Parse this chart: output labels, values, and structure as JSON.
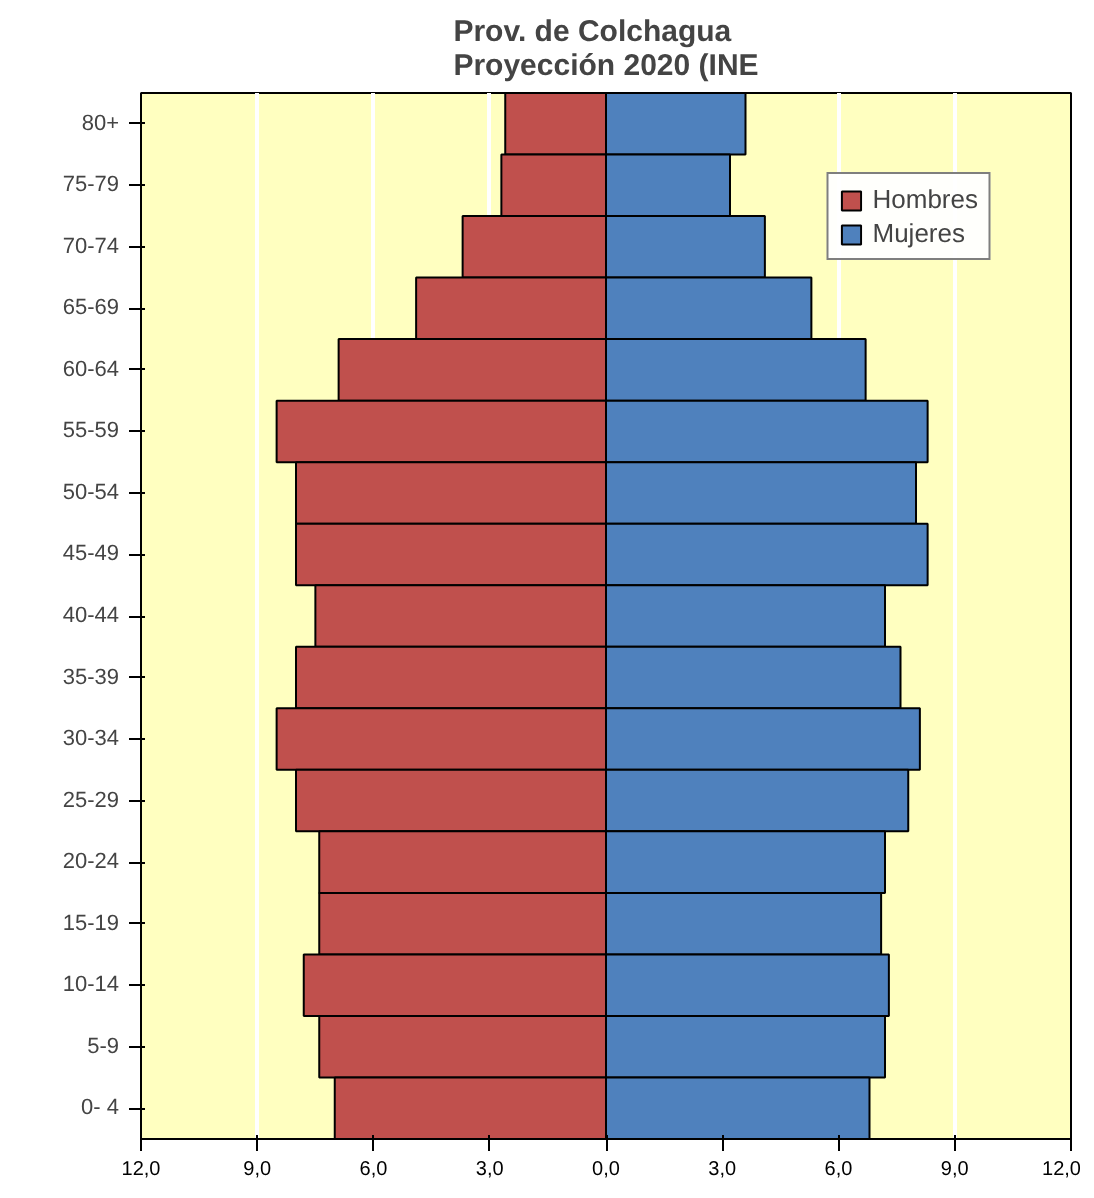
{
  "chart_data": {
    "type": "bar",
    "title": "Prov. de Colchagua\nProyección 2020 (INE",
    "orientation": "horizontal",
    "stacked": true,
    "categories": [
      "80+",
      "75-79",
      "70-74",
      "65-69",
      "60-64",
      "55-59",
      "50-54",
      "45-49",
      "40-44",
      "35-39",
      "30-34",
      "25-29",
      "20-24",
      "15-19",
      "10-14",
      "5-9",
      "0- 4"
    ],
    "series": [
      {
        "name": "Hombres",
        "color": "#c0504d",
        "values": [
          -2.6,
          -2.7,
          -3.7,
          -4.9,
          -6.9,
          -8.5,
          -8.0,
          -8.0,
          -7.5,
          -8.0,
          -8.5,
          -8.0,
          -7.4,
          -7.4,
          -7.8,
          -7.4,
          -7.0
        ]
      },
      {
        "name": "Mujeres",
        "color": "#4f81bd",
        "values": [
          3.6,
          3.2,
          4.1,
          5.3,
          6.7,
          8.3,
          8.0,
          8.3,
          7.2,
          7.6,
          8.1,
          7.8,
          7.2,
          7.1,
          7.3,
          7.2,
          6.8
        ]
      }
    ],
    "xlim": [
      -12,
      12
    ],
    "xticks": [
      {
        "value": -12,
        "label": "12,0"
      },
      {
        "value": -9,
        "label": "9,0"
      },
      {
        "value": -6,
        "label": "6,0"
      },
      {
        "value": -3,
        "label": "3,0"
      },
      {
        "value": 0,
        "label": "0,0"
      },
      {
        "value": 3,
        "label": "3,0"
      },
      {
        "value": 6,
        "label": "6,0"
      },
      {
        "value": 9,
        "label": "9,0"
      },
      {
        "value": 12,
        "label": "12,0"
      }
    ],
    "grid": "x",
    "legend": "top right"
  }
}
